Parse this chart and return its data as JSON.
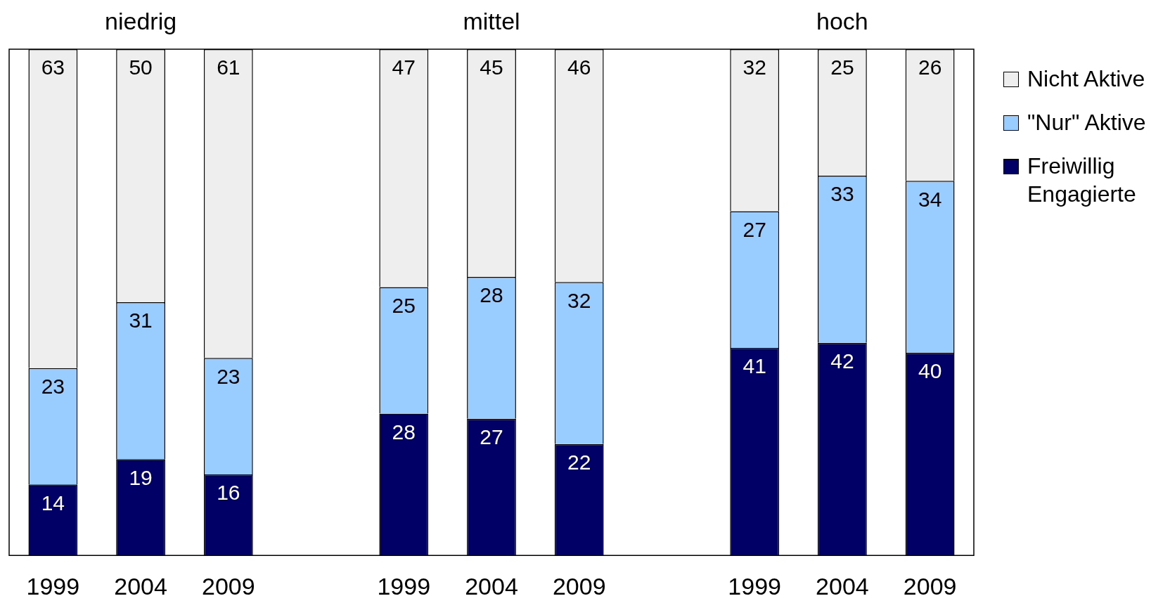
{
  "chart_data": {
    "type": "bar",
    "stacked": true,
    "categories": [
      "1999",
      "2004",
      "2009",
      null,
      "1999",
      "2004",
      "2009",
      null,
      "1999",
      "2004",
      "2009"
    ],
    "series": [
      {
        "name": "Freiwillig Engagierte",
        "color": "#000066",
        "values": [
          14,
          19,
          16,
          null,
          28,
          27,
          22,
          null,
          41,
          42,
          40
        ]
      },
      {
        "name": "\"Nur\" Aktive",
        "color": "#99ccff",
        "values": [
          23,
          31,
          23,
          null,
          25,
          28,
          32,
          null,
          27,
          33,
          34
        ]
      },
      {
        "name": "Nicht Aktive",
        "color": "#eeeeee",
        "values": [
          63,
          50,
          61,
          null,
          47,
          45,
          46,
          null,
          32,
          25,
          26
        ]
      }
    ],
    "ylim": [
      0,
      100
    ],
    "tick_labels": "x",
    "data_labels": true,
    "legend": "right",
    "grid": false,
    "annotations": [
      "niedrig",
      "mittel",
      "hoch"
    ]
  }
}
